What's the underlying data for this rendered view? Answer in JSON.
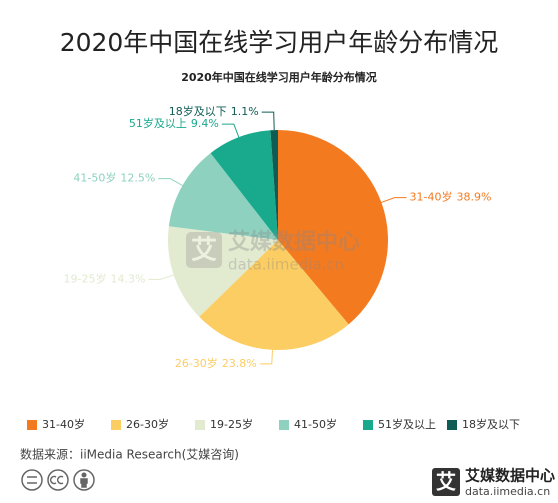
{
  "page_title": "2020年中国在线学习用户年龄分布情况",
  "chart_data": {
    "type": "pie",
    "title": "2020年中国在线学习用户年龄分布情况",
    "categories": [
      "31-40岁",
      "26-30岁",
      "19-25岁",
      "41-50岁",
      "51岁及以上",
      "18岁及以下"
    ],
    "values": [
      38.9,
      23.8,
      14.3,
      12.5,
      9.4,
      1.1
    ],
    "value_labels": [
      "38.9%",
      "23.8%",
      "14.3%",
      "12.5%",
      "9.4%",
      "1.1%"
    ],
    "colors": [
      "#f47a20",
      "#fccd62",
      "#e2ead0",
      "#8ed1bf",
      "#19a98c",
      "#0f5c55"
    ],
    "legend": "bottom"
  },
  "watermark": {
    "mark": "艾",
    "name": "艾媒数据中心",
    "url": "data.iimedia.cn"
  },
  "source": "数据来源：iiMedia Research(艾媒咨询)",
  "logo": {
    "mark": "艾",
    "name": "艾媒数据中心",
    "url": "data.iimedia.cn"
  }
}
